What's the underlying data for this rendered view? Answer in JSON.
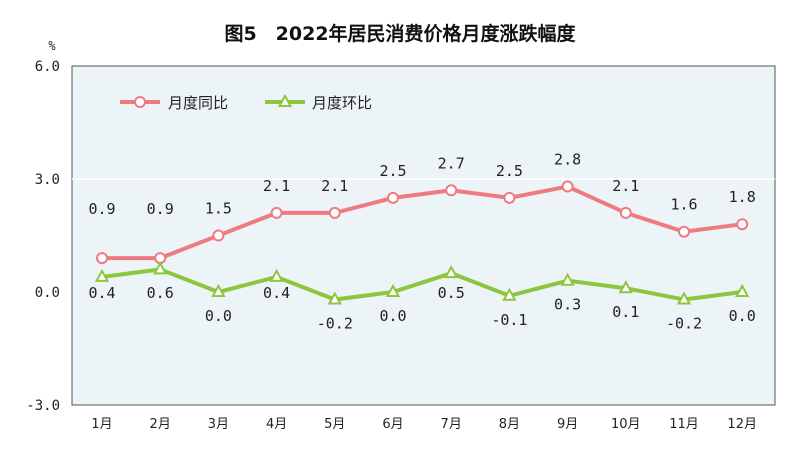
{
  "chart_data": {
    "type": "line",
    "title": "图5　2022年居民消费价格月度涨跌幅度",
    "ylabel": "%",
    "ylim": [
      -3.0,
      6.0
    ],
    "yticks": [
      "6.0",
      "3.0",
      "0.0",
      "-3.0"
    ],
    "ytick_values": [
      6,
      3,
      0,
      -3
    ],
    "categories": [
      "1月",
      "2月",
      "3月",
      "4月",
      "5月",
      "6月",
      "7月",
      "8月",
      "9月",
      "10月",
      "11月",
      "12月"
    ],
    "legend_position": "top-left",
    "grid": "horizontal at 3.0",
    "series": [
      {
        "name": "月度同比",
        "color": "#ee7b80",
        "marker": "circle",
        "values": [
          0.9,
          0.9,
          1.5,
          2.1,
          2.1,
          2.5,
          2.7,
          2.5,
          2.8,
          2.1,
          1.6,
          1.8
        ],
        "labels": [
          "0.9",
          "0.9",
          "1.5",
          "2.1",
          "2.1",
          "2.5",
          "2.7",
          "2.5",
          "2.8",
          "2.1",
          "1.6",
          "1.8"
        ]
      },
      {
        "name": "月度环比",
        "color": "#8cc63e",
        "marker": "triangle",
        "values": [
          0.4,
          0.6,
          0.0,
          0.4,
          -0.2,
          0.0,
          0.5,
          -0.1,
          0.3,
          0.1,
          -0.2,
          0.0
        ],
        "labels": [
          "0.4",
          "0.6",
          "0.0",
          "0.4",
          "-0.2",
          "0.0",
          "0.5",
          "-0.1",
          "0.3",
          "0.1",
          "-0.2",
          "0.0"
        ]
      }
    ],
    "background": "#edf4f8"
  }
}
